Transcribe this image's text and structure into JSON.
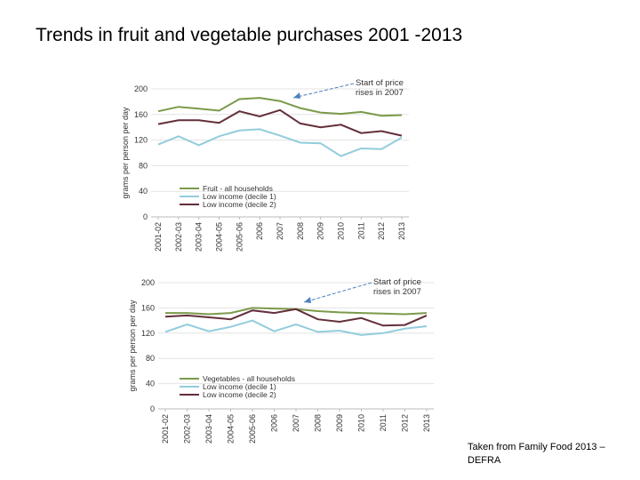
{
  "slide": {
    "title": "Trends in fruit and vegetable purchases 2001 -2013",
    "source_line1": "Taken from Family Food 2013 –",
    "source_line2": "DEFRA"
  },
  "chart_data": [
    {
      "type": "line",
      "ylabel": "grams per person per day",
      "ylim": [
        0,
        200
      ],
      "yticks": [
        0,
        40,
        80,
        120,
        160,
        200
      ],
      "x": [
        "2001-02",
        "2002-03",
        "2003-04",
        "2004-05",
        "2005-06",
        "2006",
        "2007",
        "2008",
        "2009",
        "2010",
        "2011",
        "2012",
        "2013"
      ],
      "series": [
        {
          "name": "Fruit - all households",
          "color": "#7b9a4a",
          "values": [
            165,
            172,
            169,
            166,
            184,
            186,
            181,
            170,
            163,
            161,
            164,
            158,
            159
          ]
        },
        {
          "name": "Low income (decile 1)",
          "color": "#92cddc",
          "values": [
            113,
            126,
            112,
            126,
            135,
            137,
            127,
            116,
            115,
            95,
            107,
            106,
            124
          ]
        },
        {
          "name": "Low income (decile 2)",
          "color": "#632f3a",
          "values": [
            145,
            151,
            151,
            147,
            165,
            157,
            167,
            146,
            140,
            144,
            131,
            134,
            127
          ]
        }
      ],
      "annotation": {
        "line1": "Start of price",
        "line2": "rises in 2007"
      }
    },
    {
      "type": "line",
      "ylabel": "grams per person per day",
      "ylim": [
        0,
        200
      ],
      "yticks": [
        0,
        40,
        80,
        120,
        160,
        200
      ],
      "x": [
        "2001-02",
        "2002-03",
        "2003-04",
        "2004-05",
        "2005-06",
        "2006",
        "2007",
        "2008",
        "2009",
        "2010",
        "2011",
        "2012",
        "2013"
      ],
      "series": [
        {
          "name": "Vegetables - all households",
          "color": "#7b9a4a",
          "values": [
            152,
            152,
            150,
            152,
            160,
            159,
            158,
            155,
            153,
            152,
            151,
            150,
            152
          ]
        },
        {
          "name": "Low income (decile 1)",
          "color": "#92cddc",
          "values": [
            122,
            134,
            123,
            130,
            140,
            123,
            134,
            122,
            124,
            117,
            120,
            127,
            131
          ]
        },
        {
          "name": "Low income (decile 2)",
          "color": "#632f3a",
          "values": [
            146,
            148,
            145,
            142,
            156,
            152,
            158,
            142,
            138,
            144,
            132,
            133,
            148
          ]
        }
      ],
      "annotation": {
        "line1": "Start of price",
        "line2": "rises in 2007"
      }
    }
  ]
}
